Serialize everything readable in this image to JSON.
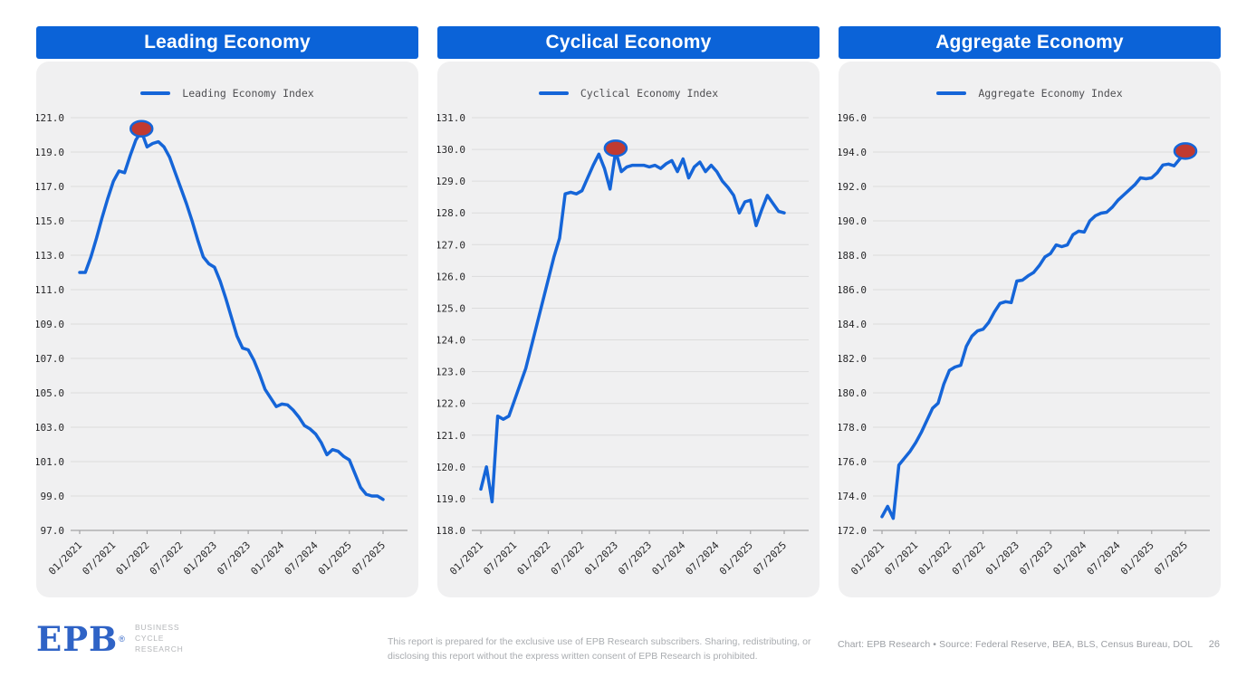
{
  "colors": {
    "header_bg": "#0b63d8",
    "line": "#1565d8",
    "marker_fill": "#c13a31",
    "marker_stroke": "#1565d8",
    "card_bg": "#f0f0f1",
    "grid": "#dcdcdc",
    "axis": "#a3a3a5",
    "tick_text": "#28282a",
    "legend_text": "#4f4f52",
    "footer_text": "#a9acb0",
    "logo_blue": "#2f63c6"
  },
  "chart_data": [
    {
      "type": "line",
      "title": "Leading Economy",
      "legend": "Leading Economy Index",
      "frequency": "monthly",
      "x_range": [
        "01/2021",
        "07/2025"
      ],
      "x_tick_labels": [
        "01/2021",
        "07/2021",
        "01/2022",
        "07/2022",
        "01/2023",
        "07/2023",
        "01/2024",
        "07/2024",
        "01/2025",
        "07/2025"
      ],
      "ylim": [
        97,
        121
      ],
      "ytick_step": 2,
      "grid": true,
      "legend_position": "top-center",
      "values": [
        112.0,
        112.0,
        112.9,
        114.0,
        115.2,
        116.3,
        117.3,
        117.9,
        117.8,
        118.8,
        119.7,
        120.2,
        119.3,
        119.5,
        119.6,
        119.3,
        118.7,
        117.8,
        116.9,
        116.0,
        115.0,
        113.9,
        112.9,
        112.5,
        112.3,
        111.5,
        110.5,
        109.4,
        108.3,
        107.6,
        107.5,
        106.9,
        106.1,
        105.2,
        104.7,
        104.2,
        104.35,
        104.3,
        104.0,
        103.6,
        103.1,
        102.9,
        102.6,
        102.1,
        101.4,
        101.7,
        101.6,
        101.3,
        101.1,
        100.3,
        99.5,
        99.1,
        99.0,
        99.0,
        98.8
      ],
      "marker_index": 11,
      "marker_value": 120.2
    },
    {
      "type": "line",
      "title": "Cyclical Economy",
      "legend": "Cyclical Economy Index",
      "frequency": "monthly",
      "x_range": [
        "01/2021",
        "07/2025"
      ],
      "x_tick_labels": [
        "01/2021",
        "07/2021",
        "01/2022",
        "07/2022",
        "01/2023",
        "07/2023",
        "01/2024",
        "07/2024",
        "01/2025",
        "07/2025"
      ],
      "ylim": [
        118,
        131
      ],
      "ytick_step": 1,
      "grid": true,
      "legend_position": "top-center",
      "values": [
        119.3,
        120.0,
        118.9,
        121.6,
        121.5,
        121.6,
        122.1,
        122.6,
        123.1,
        123.8,
        124.5,
        125.2,
        125.9,
        126.6,
        127.2,
        128.6,
        128.65,
        128.6,
        128.7,
        129.1,
        129.5,
        129.85,
        129.4,
        128.75,
        129.95,
        129.3,
        129.45,
        129.5,
        129.5,
        129.5,
        129.45,
        129.5,
        129.4,
        129.55,
        129.65,
        129.3,
        129.7,
        129.1,
        129.45,
        129.6,
        129.3,
        129.5,
        129.3,
        129.0,
        128.8,
        128.55,
        128.0,
        128.35,
        128.4,
        127.6,
        128.1,
        128.55,
        128.3,
        128.05,
        128.0
      ],
      "marker_index": 24,
      "marker_value": 129.95
    },
    {
      "type": "line",
      "title": "Aggregate Economy",
      "legend": "Aggregate Economy Index",
      "frequency": "monthly",
      "x_range": [
        "01/2021",
        "07/2025"
      ],
      "x_tick_labels": [
        "01/2021",
        "07/2021",
        "01/2022",
        "07/2022",
        "01/2023",
        "07/2023",
        "01/2024",
        "07/2024",
        "01/2025",
        "07/2025"
      ],
      "ylim": [
        172,
        196
      ],
      "ytick_step": 2,
      "grid": true,
      "legend_position": "top-center",
      "values": [
        172.8,
        173.4,
        172.7,
        175.8,
        176.2,
        176.6,
        177.1,
        177.7,
        178.4,
        179.1,
        179.4,
        180.5,
        181.3,
        181.5,
        181.6,
        182.7,
        183.3,
        183.6,
        183.7,
        184.1,
        184.7,
        185.2,
        185.3,
        185.25,
        186.5,
        186.55,
        186.8,
        187.0,
        187.4,
        187.9,
        188.1,
        188.6,
        188.5,
        188.6,
        189.2,
        189.4,
        189.35,
        190.0,
        190.3,
        190.45,
        190.5,
        190.8,
        191.2,
        191.5,
        191.8,
        192.1,
        192.5,
        192.45,
        192.5,
        192.8,
        193.25,
        193.3,
        193.2,
        193.6,
        193.9
      ],
      "marker_index": 54,
      "marker_value": 193.9
    }
  ],
  "footer": {
    "logo": {
      "text": "EPB",
      "registered": "®",
      "tagline": [
        "BUSINESS",
        "CYCLE",
        "RESEARCH"
      ]
    },
    "disclaimer": "This report is prepared for the exclusive use of EPB Research subscribers. Sharing, redistributing, or disclosing this report without the express written consent of EPB Research is prohibited.",
    "credit": "Chart: EPB Research  •  Source: Federal Reserve, BEA, BLS, Census Bureau, DOL",
    "page_number": "26"
  }
}
